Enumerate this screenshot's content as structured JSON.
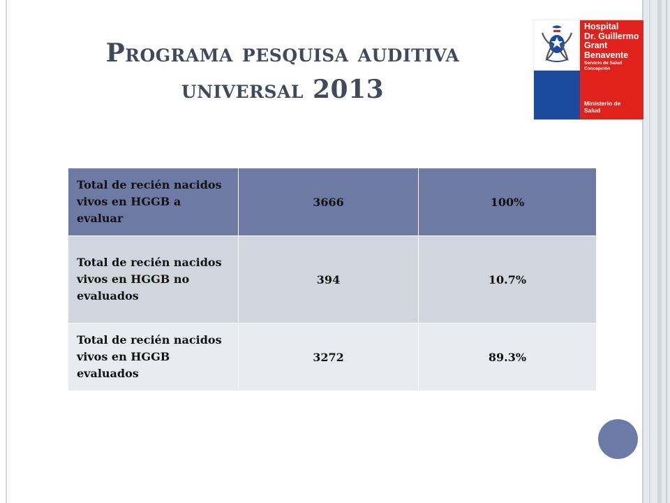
{
  "slide": {
    "title_line1": "Programa pesquisa auditiva",
    "title_line2": "universal 2013"
  },
  "logo": {
    "hospital_lines": [
      "Hospital",
      "Dr. Guillermo",
      "Grant",
      "Benavente"
    ],
    "servicio_lines": [
      "Servicio de Salud",
      "Concepción"
    ],
    "ministerio_lines": [
      "Ministerio de",
      "Salud"
    ],
    "colors": {
      "blue": "#1a4b9e",
      "red": "#e1221c"
    }
  },
  "table": {
    "rows": [
      {
        "label": "Total de recién nacidos vivos en HGGB a evaluar",
        "count": "3666",
        "percent": "100%"
      },
      {
        "label": "Total de recién nacidos vivos en HGGB no evaluados",
        "count": "394",
        "percent": "10.7%"
      },
      {
        "label": "Total de recién nacidos vivos en HGGB evaluados",
        "count": "3272",
        "percent": "89.3%"
      }
    ],
    "colors": {
      "header": "#6d7aa4",
      "row_dark": "#d1d5de",
      "row_light": "#e9ebf0"
    }
  },
  "theme": {
    "accent": "#6c7aa8",
    "title_color": "#404a5a"
  }
}
